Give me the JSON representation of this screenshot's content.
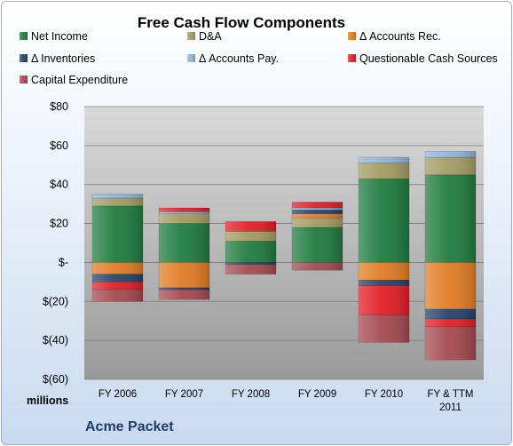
{
  "chart_data": {
    "type": "bar",
    "stacked": true,
    "title": "Free Cash Flow Components",
    "units_label": "millions",
    "company": "Acme Packet",
    "categories": [
      "FY 2006",
      "FY 2007",
      "FY 2008",
      "FY 2009",
      "FY 2010",
      "FY & TTM 2011"
    ],
    "yticks": [
      "$80",
      "$60",
      "$40",
      "$20",
      "$-",
      "$(20)",
      "$(40)",
      "$(60)"
    ],
    "ylim": [
      -60,
      80
    ],
    "grid": true,
    "legend_position": "top",
    "series": [
      {
        "name": "Net Income",
        "color": "#1e7a3e",
        "values": [
          29,
          20,
          11,
          18,
          43,
          45
        ]
      },
      {
        "name": "D&A",
        "color": "#a39a61",
        "values": [
          4,
          5,
          5,
          5,
          8,
          9
        ]
      },
      {
        "name": "Δ Accounts Rec.",
        "color": "#e07b22",
        "values": [
          -6,
          -13,
          0,
          2,
          -9,
          -24
        ]
      },
      {
        "name": "Δ Inventories",
        "color": "#24406a",
        "values": [
          -4,
          -1,
          -1,
          2,
          -3,
          -5
        ]
      },
      {
        "name": "Δ Accounts Pay.",
        "color": "#8cb3d9",
        "values": [
          2,
          1,
          0,
          1,
          3,
          3
        ]
      },
      {
        "name": "Questionable Cash Sources",
        "color": "#e11c24",
        "values": [
          -4,
          2,
          5,
          3,
          -15,
          -4
        ]
      },
      {
        "name": "Capital Expenditure",
        "color": "#a3484e",
        "values": [
          -6,
          -5,
          -5,
          -4,
          -14,
          -17
        ]
      }
    ]
  }
}
